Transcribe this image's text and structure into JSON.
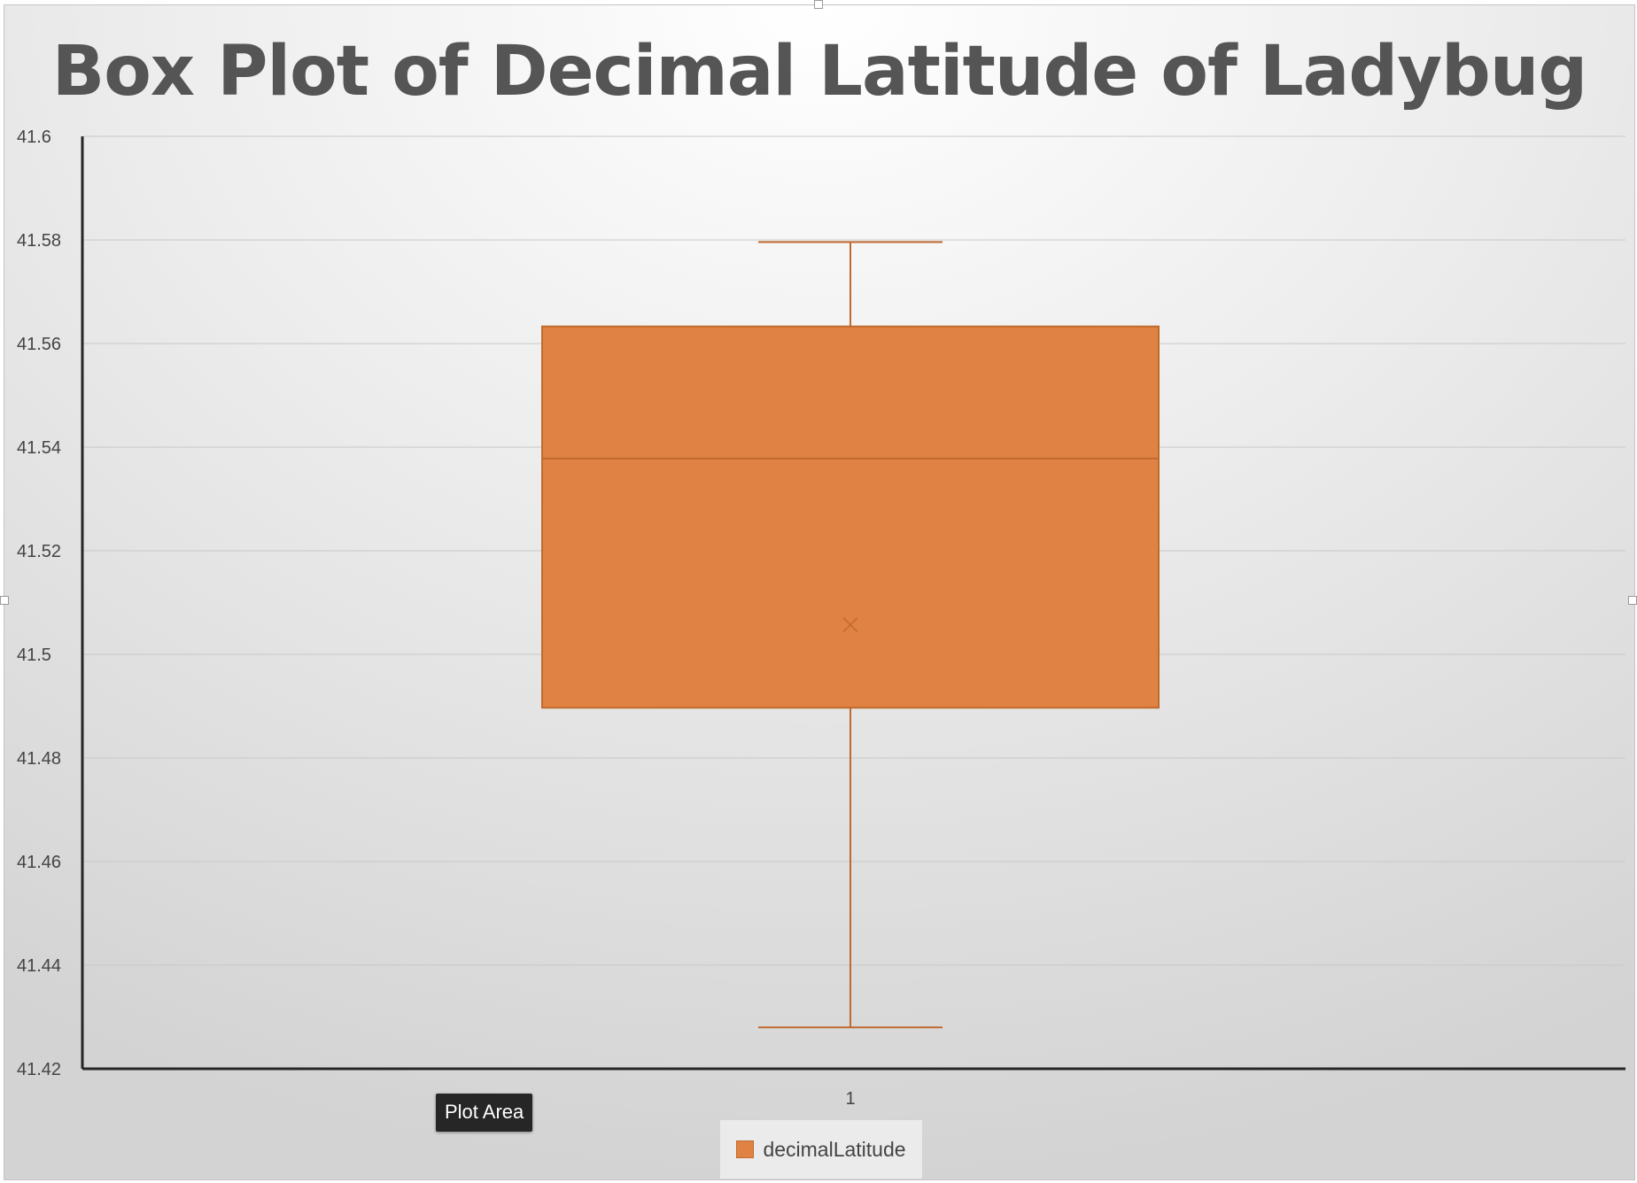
{
  "colors": {
    "box_fill": "#e08244",
    "box_stroke": "#c06a2e",
    "axis": "#262626",
    "grid": "#c8c8c8"
  },
  "tooltip": {
    "text": "Plot Area"
  },
  "chart_data": {
    "type": "box",
    "title": "Box Plot of Decimal Latitude of Ladybug",
    "xlabel": "",
    "ylabel": "",
    "ylim": [
      41.42,
      41.6
    ],
    "y_ticks": [
      "41.42",
      "41.44",
      "41.46",
      "41.48",
      "41.5",
      "41.52",
      "41.54",
      "41.56",
      "41.58",
      "41.6"
    ],
    "categories": [
      "1"
    ],
    "grid": true,
    "legend": "bottom",
    "series": [
      {
        "name": "decimalLatitude",
        "color": "#e08244",
        "whisker_low": 41.428,
        "q1": 41.4897,
        "median": 41.5378,
        "q3": 41.5633,
        "whisker_high": 41.5796,
        "mean": 41.5057
      }
    ]
  }
}
